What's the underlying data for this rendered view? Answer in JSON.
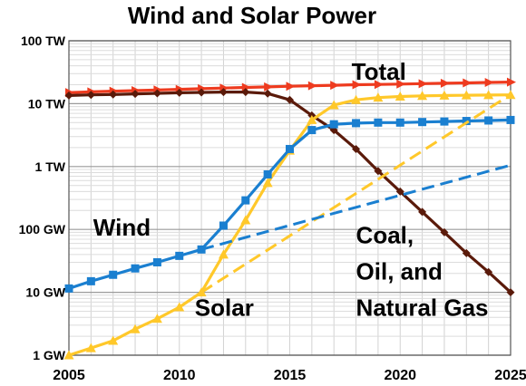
{
  "chart_data": {
    "type": "line",
    "title": "Wind and Solar Power",
    "xlabel": "",
    "ylabel": "",
    "y_scale": "log",
    "xlim": [
      2005,
      2025
    ],
    "ylim_gw": [
      1,
      100000
    ],
    "grid": true,
    "x_ticks": [
      {
        "value": 2005,
        "label": "2005"
      },
      {
        "value": 2010,
        "label": "2010"
      },
      {
        "value": 2015,
        "label": "2015"
      },
      {
        "value": 2020,
        "label": "2020"
      },
      {
        "value": 2025,
        "label": "2025"
      }
    ],
    "y_ticks": [
      {
        "value_gw": 1,
        "label": "1 GW"
      },
      {
        "value_gw": 10,
        "label": "10 GW"
      },
      {
        "value_gw": 100,
        "label": "100 GW"
      },
      {
        "value_gw": 1000,
        "label": "1 TW"
      },
      {
        "value_gw": 10000,
        "label": "10 TW"
      },
      {
        "value_gw": 100000,
        "label": "100 TW"
      }
    ],
    "annotations": [
      {
        "text": "Total",
        "x": 2017.8,
        "y_gw": 24000
      },
      {
        "text": "Wind",
        "x": 2006.1,
        "y_gw": 80
      },
      {
        "text": "Solar",
        "x": 2010.7,
        "y_gw": 4.2
      },
      {
        "text": "Coal,",
        "x": 2018.0,
        "y_gw": 60
      },
      {
        "text": "Oil, and",
        "x": 2018.0,
        "y_gw": 16
      },
      {
        "text": "Natural Gas",
        "x": 2018.0,
        "y_gw": 4.2
      }
    ],
    "series": [
      {
        "key": "total",
        "color": "#ee3b1f",
        "marker": "triangle-right",
        "dashed": false,
        "x": [
          2005,
          2006,
          2007,
          2008,
          2009,
          2010,
          2011,
          2012,
          2013,
          2014,
          2015,
          2016,
          2017,
          2018,
          2019,
          2020,
          2021,
          2022,
          2023,
          2024,
          2025
        ],
        "values": [
          15000,
          15400,
          15800,
          16100,
          16500,
          16900,
          17300,
          17700,
          18100,
          18500,
          18900,
          19300,
          19600,
          20000,
          20200,
          20500,
          20800,
          21100,
          21400,
          21700,
          22000
        ]
      },
      {
        "key": "fossil",
        "color": "#5a1a0a",
        "marker": "diamond",
        "dashed": false,
        "x": [
          2005,
          2006,
          2007,
          2008,
          2009,
          2010,
          2011,
          2012,
          2013,
          2014,
          2015,
          2016,
          2017,
          2018,
          2019,
          2020,
          2021,
          2022,
          2023,
          2024,
          2025
        ],
        "values": [
          13500,
          13800,
          14000,
          14300,
          14600,
          14900,
          15100,
          15300,
          15300,
          14500,
          11500,
          6500,
          3800,
          1900,
          850,
          400,
          190,
          90,
          42,
          21,
          10
        ]
      },
      {
        "key": "solar",
        "color": "#ffc82a",
        "marker": "triangle",
        "dashed": false,
        "x": [
          2005,
          2006,
          2007,
          2008,
          2009,
          2010,
          2011,
          2012,
          2013,
          2014,
          2015,
          2016,
          2017,
          2018,
          2019,
          2020,
          2021,
          2022,
          2023,
          2024,
          2025
        ],
        "values": [
          1.0,
          1.3,
          1.7,
          2.6,
          3.8,
          5.8,
          10,
          40,
          140,
          550,
          1800,
          5500,
          9500,
          11500,
          12500,
          13000,
          13300,
          13500,
          13600,
          13700,
          13800
        ]
      },
      {
        "key": "wind",
        "color": "#1a7fd0",
        "marker": "square",
        "dashed": false,
        "x": [
          2005,
          2006,
          2007,
          2008,
          2009,
          2010,
          2011,
          2012,
          2013,
          2014,
          2015,
          2016,
          2017,
          2018,
          2019,
          2020,
          2021,
          2022,
          2023,
          2024,
          2025
        ],
        "values": [
          11.5,
          15,
          19,
          24,
          30,
          38,
          48,
          115,
          290,
          750,
          1900,
          3800,
          4700,
          4900,
          5000,
          5000,
          5100,
          5200,
          5300,
          5400,
          5500
        ]
      },
      {
        "key": "solar-trend",
        "color": "#ffc82a",
        "marker": "none",
        "dashed": true,
        "x": [
          2011,
          2025
        ],
        "values": [
          10,
          14000
        ]
      },
      {
        "key": "wind-trend",
        "color": "#1a7fd0",
        "marker": "none",
        "dashed": true,
        "x": [
          2011,
          2025
        ],
        "values": [
          48,
          1050
        ]
      }
    ]
  }
}
